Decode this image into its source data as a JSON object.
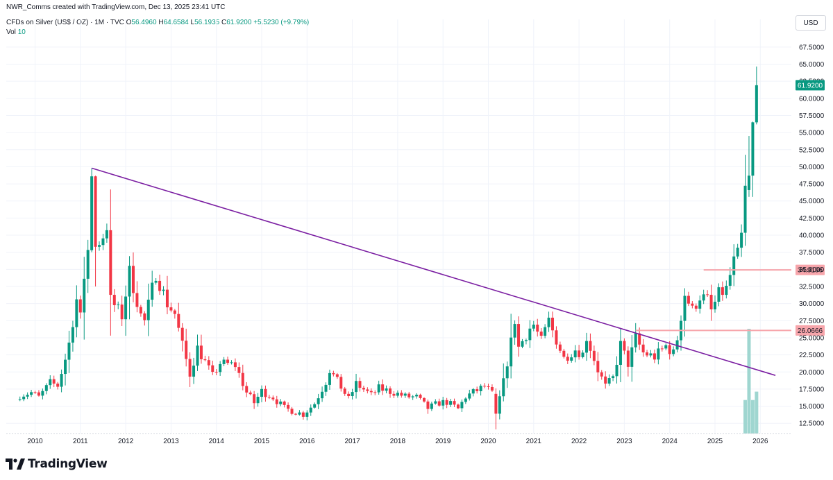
{
  "header": {
    "credit": "NWR_Comms created with TradingView.com, Dec 13, 2025 23:41 UTC",
    "symbol": "CFDs on Silver (US$ / OZ) · 1M · TVC",
    "open_label": "O",
    "open": "56.4960",
    "high_label": "H",
    "high": "64.6584",
    "low_label": "L",
    "low": "56.1935",
    "close_label": "C",
    "close": "61.9200",
    "change": "+5.5230 (+9.79%)",
    "vol_label": "Vol",
    "vol": "10"
  },
  "currency_button": "USD",
  "brand": {
    "name": "TradingView",
    "icon": "tradingview-logo-icon"
  },
  "colors": {
    "up": "#089981",
    "down": "#f23645",
    "trendline": "#7b1fa2",
    "level": "#f7a5ab",
    "volume": "#9fd6d0",
    "grid": "#f0f3fa"
  },
  "chart_data": {
    "type": "candlestick",
    "interval": "1M",
    "title": "CFDs on Silver (US$ / OZ)",
    "x_range": [
      "2009-08",
      "2026-06"
    ],
    "ylim": [
      11,
      68.5
    ],
    "y_ticks": [
      "67.5000",
      "65.0000",
      "62.5000",
      "60.0000",
      "57.5000",
      "55.0000",
      "52.5000",
      "50.0000",
      "47.5000",
      "45.0000",
      "42.5000",
      "40.0000",
      "37.5000",
      "35.0000",
      "32.5000",
      "30.0000",
      "27.5000",
      "25.0000",
      "22.5000",
      "20.0000",
      "17.5000",
      "15.0000",
      "12.5000"
    ],
    "x_ticks": [
      "2010",
      "2011",
      "2012",
      "2013",
      "2014",
      "2015",
      "2016",
      "2017",
      "2018",
      "2019",
      "2020",
      "2021",
      "2022",
      "2023",
      "2024",
      "2025",
      "2026"
    ],
    "grid": true,
    "last_price": "61.9200",
    "anchors": [
      {
        "date": "2009-09",
        "close": 16.6
      },
      {
        "date": "2009-12",
        "close": 17.0
      },
      {
        "date": "2010-02",
        "close": 16.3
      },
      {
        "date": "2010-05",
        "close": 18.4
      },
      {
        "date": "2010-07",
        "close": 18.0
      },
      {
        "date": "2010-09",
        "close": 21.9
      },
      {
        "date": "2010-10",
        "close": 24.2
      },
      {
        "date": "2010-12",
        "close": 30.6
      },
      {
        "date": "2011-01",
        "close": 27.9
      },
      {
        "date": "2011-02",
        "close": 34.0
      },
      {
        "date": "2011-03",
        "close": 37.8
      },
      {
        "date": "2011-04",
        "close": 48.6
      },
      {
        "date": "2011-05",
        "close": 38.3
      },
      {
        "date": "2011-07",
        "close": 40.0
      },
      {
        "date": "2011-08",
        "close": 41.5
      },
      {
        "date": "2011-09",
        "close": 30.5
      },
      {
        "date": "2011-12",
        "close": 28.2
      },
      {
        "date": "2012-02",
        "close": 34.6
      },
      {
        "date": "2012-05",
        "close": 28.3
      },
      {
        "date": "2012-06",
        "close": 27.4
      },
      {
        "date": "2012-09",
        "close": 34.5
      },
      {
        "date": "2012-12",
        "close": 30.0
      },
      {
        "date": "2013-02",
        "close": 28.5
      },
      {
        "date": "2013-04",
        "close": 23.9
      },
      {
        "date": "2013-06",
        "close": 19.7
      },
      {
        "date": "2013-08",
        "close": 23.5
      },
      {
        "date": "2013-12",
        "close": 19.4
      },
      {
        "date": "2014-02",
        "close": 21.3
      },
      {
        "date": "2014-06",
        "close": 21.0
      },
      {
        "date": "2014-09",
        "close": 17.0
      },
      {
        "date": "2014-11",
        "close": 15.5
      },
      {
        "date": "2015-01",
        "close": 17.2
      },
      {
        "date": "2015-04",
        "close": 16.3
      },
      {
        "date": "2015-07",
        "close": 14.7
      },
      {
        "date": "2015-12",
        "close": 13.8
      },
      {
        "date": "2016-03",
        "close": 15.4
      },
      {
        "date": "2016-06",
        "close": 18.6
      },
      {
        "date": "2016-07",
        "close": 20.3
      },
      {
        "date": "2016-10",
        "close": 17.8
      },
      {
        "date": "2016-12",
        "close": 16.0
      },
      {
        "date": "2017-02",
        "close": 18.3
      },
      {
        "date": "2017-06",
        "close": 16.6
      },
      {
        "date": "2017-08",
        "close": 17.6
      },
      {
        "date": "2017-12",
        "close": 17.0
      },
      {
        "date": "2018-03",
        "close": 16.4
      },
      {
        "date": "2018-06",
        "close": 16.3
      },
      {
        "date": "2018-09",
        "close": 14.7
      },
      {
        "date": "2018-12",
        "close": 15.5
      },
      {
        "date": "2019-02",
        "close": 15.6
      },
      {
        "date": "2019-05",
        "close": 14.6
      },
      {
        "date": "2019-07",
        "close": 16.4
      },
      {
        "date": "2019-09",
        "close": 17.0
      },
      {
        "date": "2019-12",
        "close": 17.9
      },
      {
        "date": "2020-02",
        "close": 16.8
      },
      {
        "date": "2020-03",
        "close": 13.9
      },
      {
        "date": "2020-05",
        "close": 18.5
      },
      {
        "date": "2020-07",
        "close": 24.4
      },
      {
        "date": "2020-08",
        "close": 27.6
      },
      {
        "date": "2020-09",
        "close": 23.6
      },
      {
        "date": "2020-12",
        "close": 26.4
      },
      {
        "date": "2021-01",
        "close": 26.9
      },
      {
        "date": "2021-03",
        "close": 24.5
      },
      {
        "date": "2021-05",
        "close": 27.5
      },
      {
        "date": "2021-06",
        "close": 26.0
      },
      {
        "date": "2021-09",
        "close": 22.0
      },
      {
        "date": "2021-12",
        "close": 23.3
      },
      {
        "date": "2022-02",
        "close": 22.6
      },
      {
        "date": "2022-03",
        "close": 25.1
      },
      {
        "date": "2022-06",
        "close": 20.3
      },
      {
        "date": "2022-08",
        "close": 17.9
      },
      {
        "date": "2022-10",
        "close": 19.1
      },
      {
        "date": "2022-12",
        "close": 24.0
      },
      {
        "date": "2023-02",
        "close": 21.2
      },
      {
        "date": "2023-04",
        "close": 25.0
      },
      {
        "date": "2023-06",
        "close": 22.8
      },
      {
        "date": "2023-09",
        "close": 22.2
      },
      {
        "date": "2023-12",
        "close": 23.8
      },
      {
        "date": "2024-02",
        "close": 22.7
      },
      {
        "date": "2024-03",
        "close": 24.9
      },
      {
        "date": "2024-05",
        "close": 31.4
      },
      {
        "date": "2024-07",
        "close": 29.0
      },
      {
        "date": "2024-09",
        "close": 31.1
      },
      {
        "date": "2024-11",
        "close": 30.5
      },
      {
        "date": "2024-12",
        "close": 28.9
      },
      {
        "date": "2025-02",
        "close": 31.3
      },
      {
        "date": "2025-04",
        "close": 32.1
      },
      {
        "date": "2025-06",
        "close": 36.1
      },
      {
        "date": "2025-07",
        "close": 37.0
      },
      {
        "date": "2025-08",
        "close": 39.7
      },
      {
        "date": "2025-09",
        "close": 46.6
      },
      {
        "date": "2025-10",
        "close": 48.7
      },
      {
        "date": "2025-11",
        "close": 56.5
      },
      {
        "date": "2025-12",
        "close": 61.92
      }
    ],
    "highlighted_candles": [
      {
        "date": "2011-04",
        "open": 37.8,
        "high": 49.8,
        "low": 37.5,
        "close": 48.6
      },
      {
        "date": "2011-05",
        "open": 48.6,
        "high": 48.7,
        "low": 32.5,
        "close": 38.3
      },
      {
        "date": "2020-03",
        "open": 16.8,
        "high": 17.6,
        "low": 11.6,
        "close": 13.9
      },
      {
        "date": "2025-10",
        "open": 46.6,
        "high": 54.5,
        "low": 45.6,
        "close": 48.7
      },
      {
        "date": "2025-11",
        "open": 48.7,
        "high": 56.6,
        "low": 45.6,
        "close": 56.5
      },
      {
        "date": "2025-12",
        "open": 56.496,
        "high": 64.6584,
        "low": 56.1935,
        "close": 61.92
      }
    ],
    "volume": [
      {
        "date": "2025-09",
        "value": 8
      },
      {
        "date": "2025-10",
        "value": 25
      },
      {
        "date": "2025-11",
        "value": 8
      },
      {
        "date": "2025-12",
        "value": 10
      }
    ],
    "trendline": {
      "from": {
        "date": "2011-04",
        "price": 49.8
      },
      "to": {
        "date": "2026-05",
        "price": 19.5
      }
    },
    "levels": [
      {
        "price": 34.9196,
        "label": "34.9196",
        "from": "2024-10"
      },
      {
        "price": 26.0666,
        "label": "26.0666",
        "from": "2023-04"
      }
    ]
  }
}
